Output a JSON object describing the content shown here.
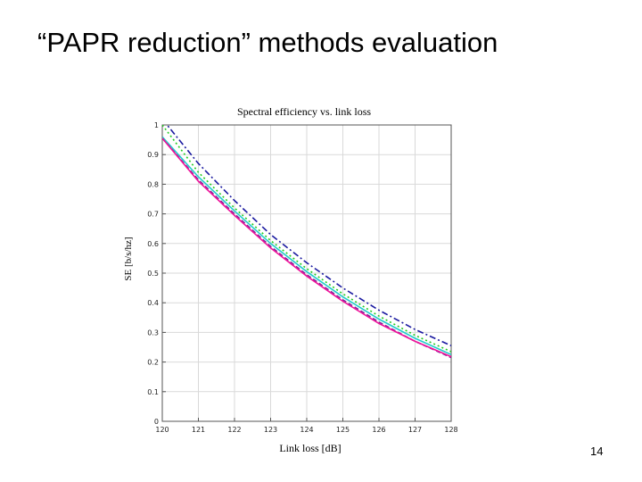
{
  "slide": {
    "title": "“PAPR reduction” methods evaluation",
    "page_number": "14"
  },
  "chart_data": {
    "type": "line",
    "title": "Spectral efficiency vs. link loss",
    "xlabel": "Link loss [dB]",
    "ylabel": "SE [b/s/hz]",
    "xlim": [
      120,
      128
    ],
    "ylim": [
      0,
      1
    ],
    "xticks": [
      120,
      121,
      122,
      123,
      124,
      125,
      126,
      127,
      128
    ],
    "yticks": [
      0,
      0.1,
      0.2,
      0.3,
      0.4,
      0.5,
      0.6,
      0.7,
      0.8,
      0.9,
      1
    ],
    "ytick_labels": [
      "0",
      "0.1",
      "0.2",
      "0.3",
      "0.4",
      "0.5",
      "0.6",
      "0.7",
      "0.8",
      "0.9",
      "1"
    ],
    "grid": true,
    "x": [
      120,
      121,
      122,
      123,
      124,
      125,
      126,
      127,
      128
    ],
    "series": [
      {
        "name": "dash-dot-blue",
        "color": "#1a1aa0",
        "dash": "7,3,2,3",
        "values": [
          1.02,
          0.87,
          0.745,
          0.63,
          0.535,
          0.45,
          0.375,
          0.31,
          0.255
        ]
      },
      {
        "name": "dotted-green",
        "color": "#22cc22",
        "dash": "2,3",
        "values": [
          1.0,
          0.84,
          0.72,
          0.61,
          0.515,
          0.43,
          0.355,
          0.29,
          0.235
        ]
      },
      {
        "name": "solid-cyan",
        "color": "#22cccc",
        "dash": "",
        "values": [
          0.96,
          0.825,
          0.71,
          0.6,
          0.505,
          0.42,
          0.345,
          0.28,
          0.225
        ]
      },
      {
        "name": "dashed-purple",
        "color": "#7a2a9a",
        "dash": "5,3",
        "values": [
          0.955,
          0.815,
          0.7,
          0.59,
          0.495,
          0.41,
          0.335,
          0.27,
          0.215
        ]
      },
      {
        "name": "solid-magenta",
        "color": "#ee1199",
        "dash": "",
        "values": [
          0.955,
          0.81,
          0.695,
          0.585,
          0.49,
          0.405,
          0.33,
          0.27,
          0.218
        ]
      }
    ]
  }
}
